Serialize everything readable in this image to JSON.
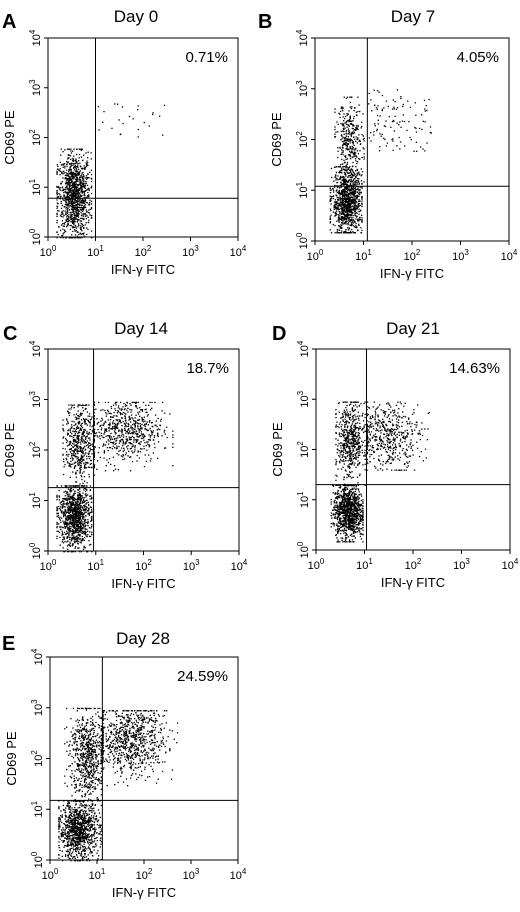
{
  "figure": {
    "background": "#ffffff",
    "ink": "#000000"
  },
  "chart_data": [
    {
      "type": "scatter",
      "panel": "A",
      "title": "Day 0",
      "xlabel": "IFN-γ FITC",
      "ylabel": "CD69 PE",
      "x_scale": "log",
      "y_scale": "log",
      "xlim": [
        1,
        10000
      ],
      "ylim": [
        1,
        10000
      ],
      "x_ticks": [
        "10^0",
        "10^1",
        "10^2",
        "10^3",
        "10^4"
      ],
      "y_ticks": [
        "10^0",
        "10^1",
        "10^2",
        "10^3",
        "10^4"
      ],
      "gate": {
        "x": 10,
        "y": 6
      },
      "upper_right_percent": "0.71%",
      "clusters": [
        {
          "x_range": [
            1.5,
            8
          ],
          "y_range": [
            1,
            60
          ],
          "center": [
            3.5,
            7
          ],
          "count": 1100,
          "density": "high"
        },
        {
          "x_range": [
            10,
            400
          ],
          "y_range": [
            100,
            500
          ],
          "center": [
            60,
            250
          ],
          "count": 25,
          "density": "sparse"
        }
      ]
    },
    {
      "type": "scatter",
      "panel": "B",
      "title": "Day 7",
      "xlabel": "IFN-γ FITC",
      "ylabel": "CD69 PE",
      "x_scale": "log",
      "y_scale": "log",
      "xlim": [
        1,
        10000
      ],
      "ylim": [
        1,
        10000
      ],
      "x_ticks": [
        "10^0",
        "10^1",
        "10^2",
        "10^3",
        "10^4"
      ],
      "y_ticks": [
        "10^0",
        "10^1",
        "10^2",
        "10^3",
        "10^4"
      ],
      "gate": {
        "x": 12,
        "y": 12
      },
      "upper_right_percent": "4.05%",
      "clusters": [
        {
          "x_range": [
            2,
            9
          ],
          "y_range": [
            1.5,
            30
          ],
          "center": [
            4.5,
            6
          ],
          "count": 1000,
          "density": "high"
        },
        {
          "x_range": [
            2.5,
            10
          ],
          "y_range": [
            15,
            700
          ],
          "center": [
            5,
            90
          ],
          "count": 350,
          "density": "medium"
        },
        {
          "x_range": [
            12,
            250
          ],
          "y_range": [
            60,
            1000
          ],
          "center": [
            40,
            300
          ],
          "count": 110,
          "density": "sparse"
        }
      ]
    },
    {
      "type": "scatter",
      "panel": "C",
      "title": "Day 14",
      "xlabel": "IFN-γ FITC",
      "ylabel": "CD69 PE",
      "x_scale": "log",
      "y_scale": "log",
      "xlim": [
        1,
        10000
      ],
      "ylim": [
        1,
        10000
      ],
      "x_ticks": [
        "10^0",
        "10^1",
        "10^2",
        "10^3",
        "10^4"
      ],
      "y_ticks": [
        "10^0",
        "10^1",
        "10^2",
        "10^3",
        "10^4"
      ],
      "gate": {
        "x": 9,
        "y": 18
      },
      "upper_right_percent": "18.7%",
      "clusters": [
        {
          "x_range": [
            1.5,
            8
          ],
          "y_range": [
            1,
            20
          ],
          "center": [
            3.5,
            5
          ],
          "count": 1000,
          "density": "high"
        },
        {
          "x_range": [
            2,
            9
          ],
          "y_range": [
            20,
            800
          ],
          "center": [
            4.5,
            150
          ],
          "count": 500,
          "density": "medium"
        },
        {
          "x_range": [
            9,
            400
          ],
          "y_range": [
            40,
            900
          ],
          "center": [
            40,
            250
          ],
          "count": 650,
          "density": "medium"
        }
      ]
    },
    {
      "type": "scatter",
      "panel": "D",
      "title": "Day 21",
      "xlabel": "IFN-γ FITC",
      "ylabel": "CD69 PE",
      "x_scale": "log",
      "y_scale": "log",
      "xlim": [
        1,
        10000
      ],
      "ylim": [
        1,
        10000
      ],
      "x_ticks": [
        "10^0",
        "10^1",
        "10^2",
        "10^3",
        "10^4"
      ],
      "y_ticks": [
        "10^0",
        "10^1",
        "10^2",
        "10^3",
        "10^4"
      ],
      "gate": {
        "x": 11,
        "y": 20
      },
      "upper_right_percent": "14.63%",
      "clusters": [
        {
          "x_range": [
            2,
            9
          ],
          "y_range": [
            1.5,
            20
          ],
          "center": [
            4.5,
            6
          ],
          "count": 1000,
          "density": "high"
        },
        {
          "x_range": [
            2.5,
            10
          ],
          "y_range": [
            20,
            900
          ],
          "center": [
            5,
            150
          ],
          "count": 550,
          "density": "medium"
        },
        {
          "x_range": [
            11,
            300
          ],
          "y_range": [
            40,
            900
          ],
          "center": [
            30,
            200
          ],
          "count": 500,
          "density": "medium"
        }
      ]
    },
    {
      "type": "scatter",
      "panel": "E",
      "title": "Day 28",
      "xlabel": "IFN-γ FITC",
      "ylabel": "CD69 PE",
      "x_scale": "log",
      "y_scale": "log",
      "xlim": [
        1,
        10000
      ],
      "ylim": [
        1,
        10000
      ],
      "x_ticks": [
        "10^0",
        "10^1",
        "10^2",
        "10^3",
        "10^4"
      ],
      "y_ticks": [
        "10^0",
        "10^1",
        "10^2",
        "10^3",
        "10^4"
      ],
      "gate": {
        "x": 13,
        "y": 15
      },
      "upper_right_percent": "24.59%",
      "clusters": [
        {
          "x_range": [
            1.5,
            12
          ],
          "y_range": [
            1,
            15
          ],
          "center": [
            4,
            4
          ],
          "count": 1000,
          "density": "high"
        },
        {
          "x_range": [
            2,
            12
          ],
          "y_range": [
            15,
            1000
          ],
          "center": [
            6,
            120
          ],
          "count": 650,
          "density": "medium"
        },
        {
          "x_range": [
            13,
            500
          ],
          "y_range": [
            30,
            900
          ],
          "center": [
            50,
            250
          ],
          "count": 800,
          "density": "medium"
        }
      ]
    }
  ]
}
